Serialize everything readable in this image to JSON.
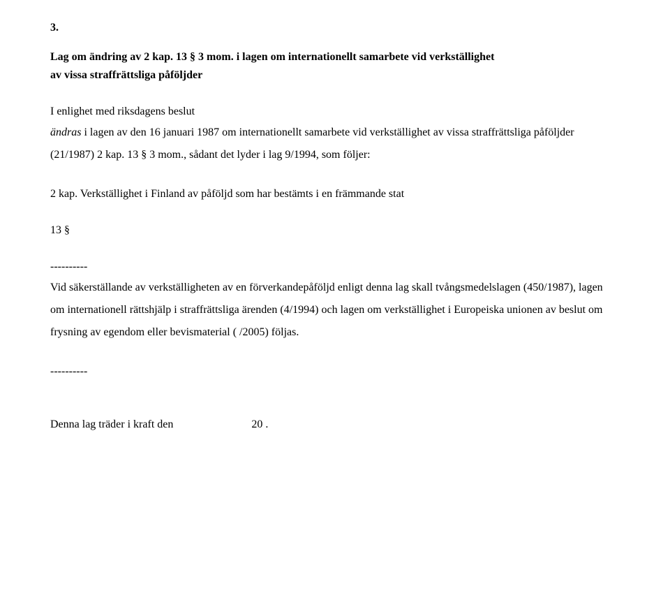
{
  "section_number": "3.",
  "law_title_line1": "Lag om ändring av 2 kap. 13 § 3 mom. i lagen om internationellt samarbete vid verkställighet",
  "law_title_line2": "av vissa straffrättsliga påföljder",
  "enlighet": "I enlighet med riksdagens beslut",
  "amend_italic": "ändras",
  "amend_rest": " i lagen av den 16 januari 1987 om internationellt samarbete vid verkställighet av vissa straffrättsliga påföljder (21/1987) 2 kap. 13 § 3 mom., sådant det lyder i lag 9/1994, som följer:",
  "chapter_heading": "2 kap. Verkställighet i Finland av påföljd som har bestämts i en främmande stat",
  "para_heading": "13 §",
  "dashes": "----------",
  "body_text": "Vid säkerställande av verkställigheten av en förverkandepåföljd enligt denna lag skall tvångsmedelslagen (450/1987), lagen om internationell rättshjälp i straffrättsliga ärenden (4/1994) och lagen om verkställighet i Europeiska unionen av beslut om frysning av egendom eller bevismaterial (   /2005) följas.",
  "effect_prefix": "Denna lag träder i kraft den",
  "effect_suffix": "20  .",
  "colors": {
    "text": "#000000",
    "background": "#ffffff"
  },
  "font": {
    "family": "Times New Roman",
    "size_pt": 12
  }
}
